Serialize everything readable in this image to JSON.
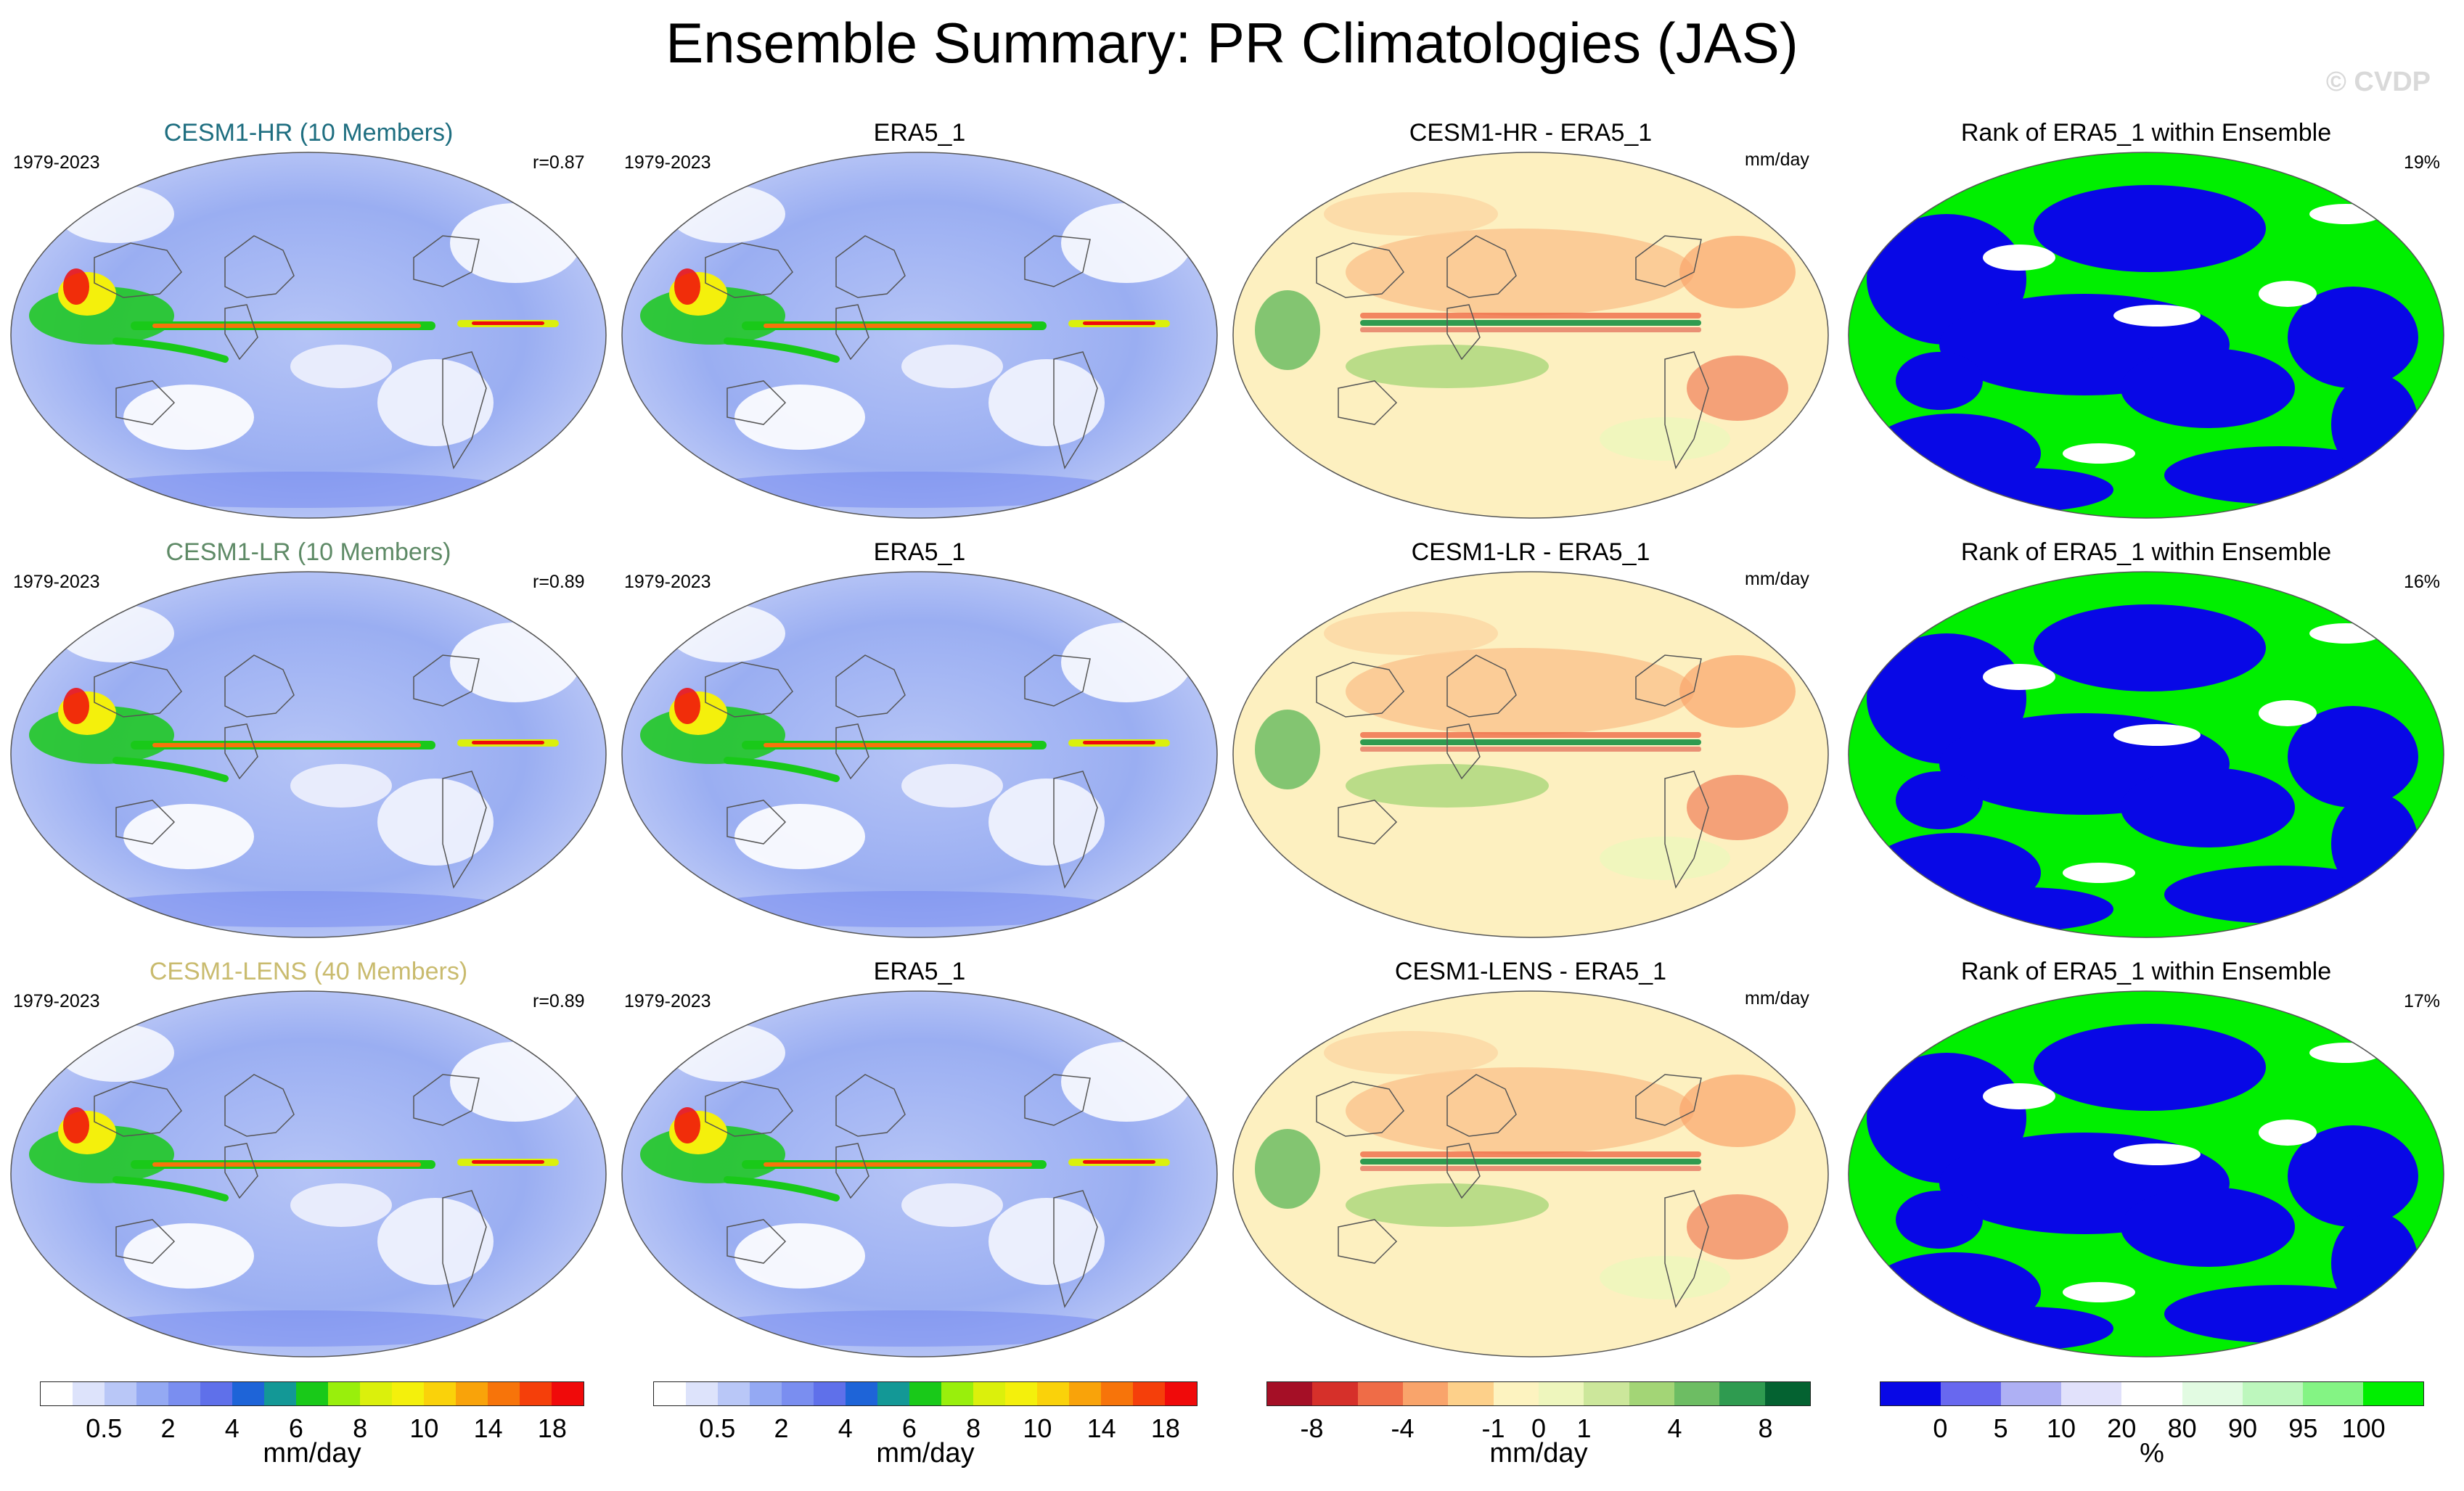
{
  "title": "Ensemble Summary: PR Climatologies (JAS)",
  "watermark": "© CVDP",
  "rows": [
    {
      "ensemble": {
        "title": "CESM1-HR (10 Members)",
        "title_color": "#1e6e80",
        "period": "1979-2023",
        "r": "r=0.87"
      },
      "obs": {
        "title": "ERA5_1",
        "period": "1979-2023"
      },
      "diff": {
        "title": "CESM1-HR - ERA5_1",
        "units": "mm/day"
      },
      "rank": {
        "title": "Rank of ERA5_1 within Ensemble",
        "pct": "19%"
      }
    },
    {
      "ensemble": {
        "title": "CESM1-LR (10 Members)",
        "title_color": "#5e8a66",
        "period": "1979-2023",
        "r": "r=0.89"
      },
      "obs": {
        "title": "ERA5_1",
        "period": "1979-2023"
      },
      "diff": {
        "title": "CESM1-LR - ERA5_1",
        "units": "mm/day"
      },
      "rank": {
        "title": "Rank of ERA5_1 within Ensemble",
        "pct": "16%"
      }
    },
    {
      "ensemble": {
        "title": "CESM1-LENS (40 Members)",
        "title_color": "#c9bb6e",
        "period": "1979-2023",
        "r": "r=0.89"
      },
      "obs": {
        "title": "ERA5_1",
        "period": "1979-2023"
      },
      "diff": {
        "title": "CESM1-LENS - ERA5_1",
        "units": "mm/day"
      },
      "rank": {
        "title": "Rank of ERA5_1 within Ensemble",
        "pct": "17%"
      }
    }
  ],
  "colorbars": {
    "precip": {
      "colors": [
        "#ffffff",
        "#dde3fb",
        "#b9c7f7",
        "#94a9f3",
        "#7a8ef0",
        "#5f70ea",
        "#1e64d8",
        "#139896",
        "#19c919",
        "#99ef0c",
        "#dbf00c",
        "#f4f00c",
        "#fad20a",
        "#f9a30a",
        "#f7740a",
        "#f53f0a",
        "#f00a0a"
      ],
      "ticks": [
        "0.5",
        "2",
        "4",
        "6",
        "8",
        "10",
        "14",
        "18"
      ],
      "label": "mm/day"
    },
    "diff": {
      "colors": [
        "#a50f26",
        "#d6302a",
        "#ef6c47",
        "#f9a46b",
        "#fdd08a",
        "#fdf3c0",
        "#eef6bd",
        "#cce79b",
        "#a3d576",
        "#6dbd63",
        "#2f9b50",
        "#046231"
      ],
      "ticks": [
        "-8",
        "-4",
        "-1",
        "0",
        "1",
        "4",
        "8"
      ],
      "label": "mm/day"
    },
    "rank": {
      "colors": [
        "#0808e6",
        "#6868ef",
        "#aeb0f4",
        "#e1e1fb",
        "#ffffff",
        "#e2fbe2",
        "#bdf7bd",
        "#84f484",
        "#00ef00"
      ],
      "ticks": [
        "0",
        "5",
        "10",
        "20",
        "80",
        "90",
        "95",
        "100"
      ],
      "label": "%"
    }
  }
}
